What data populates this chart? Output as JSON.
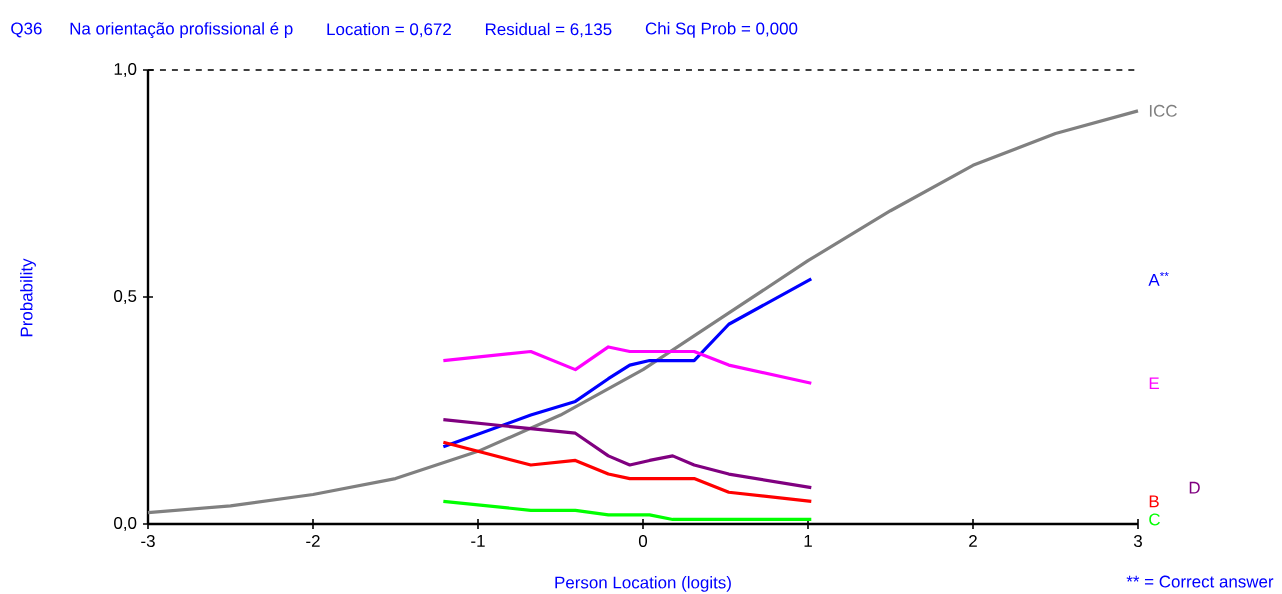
{
  "chart_data": {
    "type": "line",
    "title": "Q36",
    "subtitle": "Na orientação profissional é p",
    "xlabel": "Person Location (logits)",
    "ylabel": "Probability",
    "annotations": [
      "Location = 0,672",
      "Residual = 6,135",
      "Chi Sq Prob = 0,000",
      "** = Correct answer"
    ],
    "x": [
      -1.21,
      -0.68,
      -0.41,
      -0.21,
      -0.08,
      0.04,
      0.18,
      0.31,
      0.52,
      1.02
    ],
    "series": [
      {
        "name": "ICC",
        "color": "#808080",
        "x": [
          -3,
          -2.5,
          -2,
          -1.5,
          -1,
          -0.5,
          0,
          0.5,
          1,
          1.5,
          2,
          2.5,
          3
        ],
        "values": [
          0.025,
          0.04,
          0.065,
          0.1,
          0.16,
          0.24,
          0.34,
          0.46,
          0.58,
          0.69,
          0.79,
          0.86,
          0.91
        ]
      },
      {
        "name": "A$^{**}$",
        "color": "#0000ff",
        "values": [
          0.17,
          0.24,
          0.27,
          0.32,
          0.35,
          0.36,
          0.36,
          0.36,
          0.44,
          0.54
        ]
      },
      {
        "name": "E",
        "color": "#ff00ff",
        "values": [
          0.36,
          0.38,
          0.34,
          0.39,
          0.38,
          0.38,
          0.38,
          0.38,
          0.35,
          0.31
        ]
      },
      {
        "name": "B",
        "color": "#ff0000",
        "values": [
          0.18,
          0.13,
          0.14,
          0.11,
          0.1,
          0.1,
          0.1,
          0.1,
          0.07,
          0.05
        ]
      },
      {
        "name": "D",
        "color": "#800080",
        "values": [
          0.23,
          0.21,
          0.2,
          0.15,
          0.13,
          0.14,
          0.15,
          0.13,
          0.11,
          0.08
        ]
      },
      {
        "name": "C",
        "color": "#00ff00",
        "values": [
          0.05,
          0.03,
          0.03,
          0.02,
          0.02,
          0.02,
          0.01,
          0.01,
          0.01,
          0.01
        ]
      }
    ],
    "xlim": [
      -3,
      3
    ],
    "ylim": [
      0,
      1
    ],
    "xticks": [
      -3,
      -2,
      -1,
      0,
      1,
      2,
      3
    ],
    "yticks": [
      {
        "value": 0,
        "label": "0,0"
      },
      {
        "value": 0.5,
        "label": "0,5"
      },
      {
        "value": 1,
        "label": "1,0"
      }
    ],
    "ref_lines": [
      {
        "axis": "y",
        "value": 1,
        "color": "#000000",
        "line_style": "dashed"
      }
    ]
  }
}
